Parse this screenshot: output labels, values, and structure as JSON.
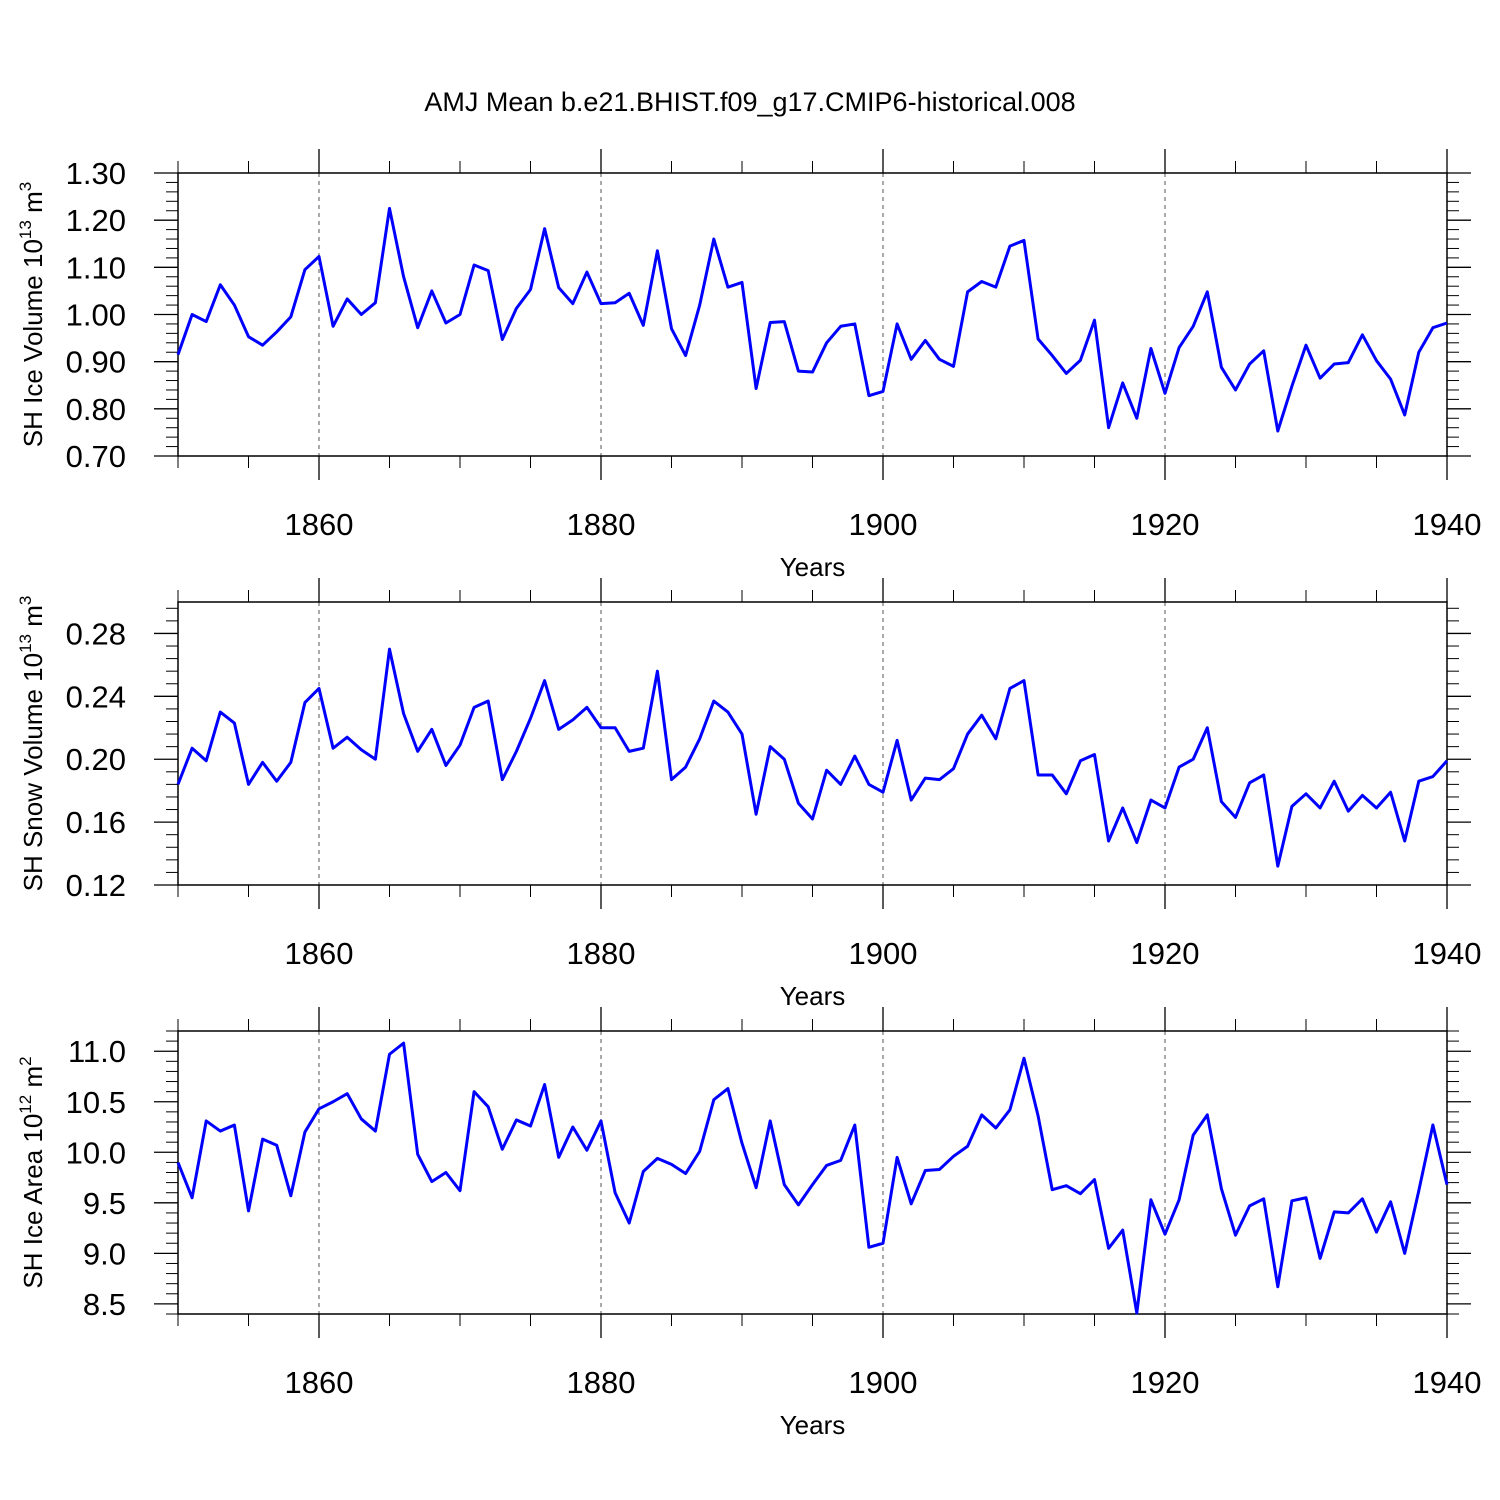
{
  "title": "AMJ Mean b.e21.BHIST.f09_g17.CMIP6-historical.008",
  "line_color": "#0000ff",
  "chart_data": [
    {
      "type": "line",
      "xlabel": "Years",
      "ylabel": "SH Ice Volume 10",
      "ylabel_sup": "13",
      "ylabel_unit": " m",
      "ylabel_unit_sup": "3",
      "xlim": [
        1850,
        1940
      ],
      "ylim": [
        0.7,
        1.3
      ],
      "xticks": [
        1860,
        1880,
        1900,
        1920,
        1940
      ],
      "xtick_labels": [
        "1860",
        "1880",
        "1900",
        "1920",
        "1940"
      ],
      "yticks": [
        0.7,
        0.8,
        0.9,
        1.0,
        1.1,
        1.2,
        1.3
      ],
      "ytick_labels": [
        "0.70",
        "0.80",
        "0.90",
        "1.00",
        "1.10",
        "1.20",
        "1.30"
      ],
      "grid": "dashed vertical at major x ticks",
      "series": [
        {
          "x_start": 1850,
          "values": [
            0.915,
            1.0,
            0.985,
            1.063,
            1.02,
            0.953,
            0.935,
            0.963,
            0.995,
            1.095,
            1.123,
            0.975,
            1.033,
            1.0,
            1.025,
            1.225,
            1.08,
            0.972,
            1.05,
            0.982,
            1.0,
            1.105,
            1.093,
            0.947,
            1.013,
            1.053,
            1.182,
            1.057,
            1.023,
            1.09,
            1.023,
            1.025,
            1.045,
            0.977,
            1.135,
            0.97,
            0.913,
            1.02,
            1.16,
            1.058,
            1.068,
            0.843,
            0.983,
            0.985,
            0.88,
            0.878,
            0.94,
            0.975,
            0.98,
            0.828,
            0.837,
            0.98,
            0.905,
            0.945,
            0.905,
            0.89,
            1.048,
            1.07,
            1.058,
            1.145,
            1.157,
            0.948,
            0.913,
            0.875,
            0.903,
            0.988,
            0.76,
            0.855,
            0.78,
            0.928,
            0.833,
            0.93,
            0.975,
            1.048,
            0.888,
            0.84,
            0.895,
            0.923,
            0.753,
            0.848,
            0.935,
            0.865,
            0.895,
            0.898,
            0.957,
            0.902,
            0.863,
            0.787,
            0.92,
            0.972,
            0.982
          ]
        }
      ]
    },
    {
      "type": "line",
      "xlabel": "Years",
      "ylabel": "SH Snow Volume 10",
      "ylabel_sup": "13",
      "ylabel_unit": " m",
      "ylabel_unit_sup": "3",
      "xlim": [
        1850,
        1940
      ],
      "ylim": [
        0.12,
        0.3
      ],
      "xticks": [
        1860,
        1880,
        1900,
        1920,
        1940
      ],
      "xtick_labels": [
        "1860",
        "1880",
        "1900",
        "1920",
        "1940"
      ],
      "yticks": [
        0.12,
        0.16,
        0.2,
        0.24,
        0.28
      ],
      "ytick_labels": [
        "0.12",
        "0.16",
        "0.20",
        "0.24",
        "0.28"
      ],
      "grid": "dashed vertical at major x ticks",
      "series": [
        {
          "x_start": 1850,
          "values": [
            0.184,
            0.207,
            0.199,
            0.23,
            0.223,
            0.184,
            0.198,
            0.186,
            0.198,
            0.236,
            0.245,
            0.207,
            0.214,
            0.206,
            0.2,
            0.27,
            0.229,
            0.205,
            0.219,
            0.196,
            0.209,
            0.233,
            0.237,
            0.187,
            0.205,
            0.226,
            0.25,
            0.219,
            0.225,
            0.233,
            0.22,
            0.22,
            0.205,
            0.207,
            0.256,
            0.187,
            0.195,
            0.213,
            0.237,
            0.23,
            0.216,
            0.165,
            0.208,
            0.2,
            0.172,
            0.162,
            0.193,
            0.184,
            0.202,
            0.184,
            0.179,
            0.212,
            0.174,
            0.188,
            0.187,
            0.194,
            0.216,
            0.228,
            0.213,
            0.245,
            0.25,
            0.19,
            0.19,
            0.178,
            0.199,
            0.203,
            0.148,
            0.169,
            0.147,
            0.174,
            0.169,
            0.195,
            0.2,
            0.22,
            0.173,
            0.163,
            0.185,
            0.19,
            0.132,
            0.17,
            0.178,
            0.169,
            0.186,
            0.167,
            0.177,
            0.169,
            0.179,
            0.148,
            0.186,
            0.189,
            0.199
          ]
        }
      ]
    },
    {
      "type": "line",
      "xlabel": "Years",
      "ylabel": "SH Ice Area 10",
      "ylabel_sup": "12",
      "ylabel_unit": " m",
      "ylabel_unit_sup": "2",
      "xlim": [
        1850,
        1940
      ],
      "ylim": [
        8.4,
        11.2
      ],
      "xticks": [
        1860,
        1880,
        1900,
        1920,
        1940
      ],
      "xtick_labels": [
        "1860",
        "1880",
        "1900",
        "1920",
        "1940"
      ],
      "yticks": [
        8.5,
        9.0,
        9.5,
        10.0,
        10.5,
        11.0
      ],
      "ytick_labels": [
        "8.5",
        "9.0",
        "9.5",
        "10.0",
        "10.5",
        "11.0"
      ],
      "grid": "dashed vertical at major x ticks",
      "series": [
        {
          "x_start": 1850,
          "values": [
            9.9,
            9.55,
            10.31,
            10.21,
            10.27,
            9.42,
            10.13,
            10.07,
            9.57,
            10.2,
            10.43,
            10.5,
            10.58,
            10.33,
            10.21,
            10.97,
            11.08,
            9.98,
            9.71,
            9.8,
            9.62,
            10.6,
            10.45,
            10.03,
            10.32,
            10.26,
            10.67,
            9.95,
            10.25,
            10.02,
            10.31,
            9.6,
            9.3,
            9.81,
            9.94,
            9.88,
            9.79,
            10.01,
            10.52,
            10.63,
            10.09,
            9.65,
            10.31,
            9.68,
            9.48,
            9.68,
            9.87,
            9.92,
            10.27,
            9.06,
            9.1,
            9.95,
            9.49,
            9.82,
            9.83,
            9.96,
            10.06,
            10.37,
            10.24,
            10.42,
            10.93,
            10.36,
            9.63,
            9.67,
            9.59,
            9.73,
            9.05,
            9.23,
            8.41,
            9.53,
            9.19,
            9.53,
            10.17,
            10.37,
            9.64,
            9.18,
            9.47,
            9.54,
            8.67,
            9.52,
            9.55,
            8.95,
            9.41,
            9.4,
            9.54,
            9.21,
            9.51,
            9.0,
            9.62,
            10.27,
            9.68
          ]
        }
      ]
    }
  ]
}
